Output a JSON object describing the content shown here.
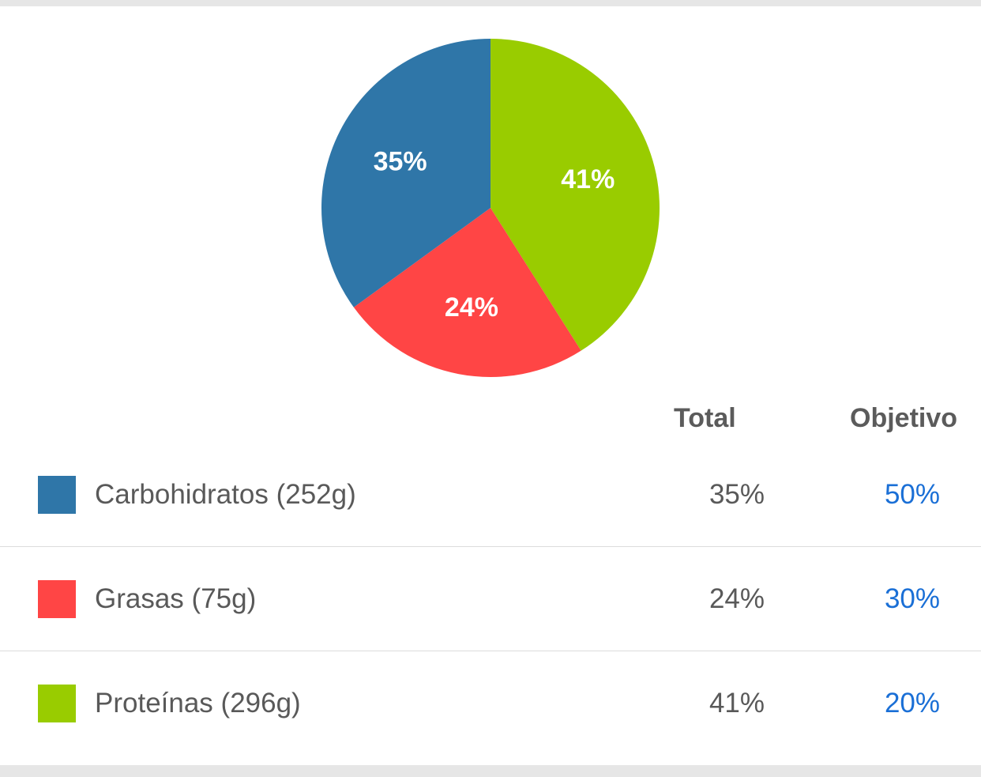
{
  "chart_data": {
    "type": "pie",
    "title": "",
    "legend_placement": "bottom",
    "slices": [
      {
        "label": "Proteínas",
        "value": 41,
        "display": "41%",
        "color": "#99cc00"
      },
      {
        "label": "Grasas",
        "value": 24,
        "display": "24%",
        "color": "#ff4545"
      },
      {
        "label": "Carbohidratos",
        "value": 35,
        "display": "35%",
        "color": "#2f76a8"
      }
    ]
  },
  "table": {
    "headers": {
      "total": "Total",
      "goal": "Objetivo"
    },
    "rows": [
      {
        "label": "Carbohidratos (252g)",
        "total": "35%",
        "goal": "50%",
        "color": "#2f76a8"
      },
      {
        "label": "Grasas (75g)",
        "total": "24%",
        "goal": "30%",
        "color": "#ff4545"
      },
      {
        "label": "Proteínas (296g)",
        "total": "41%",
        "goal": "20%",
        "color": "#99cc00"
      }
    ]
  }
}
